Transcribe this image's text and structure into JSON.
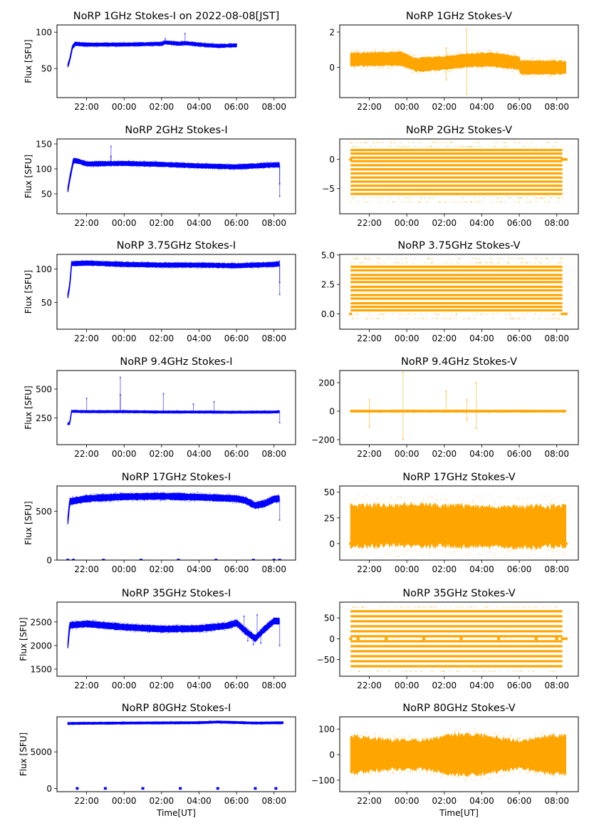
{
  "figure": {
    "date_label": "2022-08-08[JST]",
    "xlabel": "Time[UT]",
    "ylabel": "Flux [SFU]",
    "colors": {
      "stokes_i": "#0000ff",
      "stokes_v": "#ffa500"
    }
  },
  "chart_data": [
    {
      "type": "scatter",
      "panel": "1GHz-I",
      "title": "NoRP 1GHz Stokes-I on 2022-08-08[JST]",
      "ylabel": "Flux [SFU]",
      "xlabel": "",
      "x_tick_labels": [
        "22:00",
        "00:00",
        "02:00",
        "04:00",
        "06:00",
        "08:00"
      ],
      "y_ticks": [
        50,
        100
      ],
      "ylim": [
        10,
        110
      ],
      "series": {
        "name": "Stokes-I",
        "color": "#0000ff",
        "start": 21.0,
        "end": 30.0,
        "points": [
          [
            21.0,
            54
          ],
          [
            21.1,
            62
          ],
          [
            21.25,
            80
          ],
          [
            21.4,
            84
          ],
          [
            22,
            83
          ],
          [
            24,
            83
          ],
          [
            26,
            84
          ],
          [
            26.2,
            86
          ],
          [
            27,
            84
          ],
          [
            27.25,
            85
          ],
          [
            28,
            83
          ],
          [
            29,
            81
          ],
          [
            30,
            82
          ]
        ],
        "band": 2,
        "spikes": [
          [
            26.2,
            91
          ],
          [
            27.25,
            98
          ]
        ]
      }
    },
    {
      "type": "scatter",
      "panel": "1GHz-V",
      "title": "NoRP 1GHz Stokes-V",
      "x_tick_labels": [
        "22:00",
        "00:00",
        "02:00",
        "04:00",
        "06:00",
        "08:00"
      ],
      "y_ticks": [
        0,
        2
      ],
      "ylim": [
        -1.7,
        2.4
      ],
      "series": {
        "name": "Stokes-V",
        "color": "#ffa500",
        "start": 21.0,
        "end": 32.5,
        "points": [
          [
            21.0,
            0.45
          ],
          [
            23.7,
            0.5
          ],
          [
            24.5,
            0.15
          ],
          [
            26,
            0.25
          ],
          [
            27.2,
            0.4
          ],
          [
            28.5,
            0.45
          ],
          [
            30,
            0.25
          ],
          [
            30.05,
            0.0
          ],
          [
            32.5,
            0.0
          ]
        ],
        "band": 0.35,
        "spikes": [
          [
            26.1,
            -0.7
          ],
          [
            26.1,
            1.1
          ],
          [
            27.2,
            2.2
          ],
          [
            27.2,
            -1.5
          ]
        ]
      }
    },
    {
      "type": "scatter",
      "panel": "2GHz-I",
      "title": "NoRP 2GHz Stokes-I",
      "ylabel": "Flux [SFU]",
      "x_tick_labels": [
        "22:00",
        "00:00",
        "02:00",
        "04:00",
        "06:00",
        "08:00"
      ],
      "y_ticks": [
        50,
        100,
        150
      ],
      "ylim": [
        10,
        160
      ],
      "series": {
        "name": "Stokes-I",
        "color": "#0000ff",
        "start": 21.0,
        "end": 32.3,
        "points": [
          [
            21.0,
            58
          ],
          [
            21.1,
            80
          ],
          [
            21.3,
            117
          ],
          [
            21.6,
            115
          ],
          [
            22,
            110
          ],
          [
            24,
            111
          ],
          [
            26,
            109
          ],
          [
            28,
            106
          ],
          [
            30,
            104
          ],
          [
            32,
            108
          ],
          [
            32.3,
            108
          ]
        ],
        "band": 4,
        "spikes": [
          [
            23.3,
            145
          ],
          [
            23.3,
            125
          ],
          [
            32.3,
            45
          ],
          [
            32.3,
            70
          ]
        ]
      }
    },
    {
      "type": "scatter",
      "panel": "2GHz-V",
      "title": "NoRP 2GHz Stokes-V",
      "x_tick_labels": [
        "22:00",
        "00:00",
        "02:00",
        "04:00",
        "06:00",
        "08:00"
      ],
      "y_ticks": [
        -5,
        0
      ],
      "ylim": [
        -9.3,
        3.5
      ],
      "series": {
        "name": "Stokes-V",
        "color": "#ffa500",
        "start": 21.0,
        "end": 32.3,
        "levels": [
          1.6,
          1.0,
          0.3,
          -0.3,
          -1.0,
          -1.7,
          -2.4,
          -3.1,
          -3.8,
          -4.5,
          -5.2,
          -5.9
        ],
        "faint_levels": [
          2.2,
          2.9,
          -6.6,
          -7.3
        ],
        "end_value": 0
      }
    },
    {
      "type": "scatter",
      "panel": "3.75GHz-I",
      "title": "NoRP 3.75GHz Stokes-I",
      "ylabel": "Flux [SFU]",
      "x_tick_labels": [
        "22:00",
        "00:00",
        "02:00",
        "04:00",
        "06:00",
        "08:00"
      ],
      "y_ticks": [
        50,
        100
      ],
      "ylim": [
        10,
        122
      ],
      "series": {
        "name": "Stokes-I",
        "color": "#0000ff",
        "start": 21.0,
        "end": 32.3,
        "points": [
          [
            21.0,
            60
          ],
          [
            21.1,
            75
          ],
          [
            21.2,
            108
          ],
          [
            22,
            109
          ],
          [
            24,
            107
          ],
          [
            26,
            106
          ],
          [
            28,
            106
          ],
          [
            30,
            105
          ],
          [
            32,
            107
          ],
          [
            32.3,
            108
          ]
        ],
        "band": 3,
        "spikes": [
          [
            32.3,
            62
          ],
          [
            32.3,
            80
          ]
        ]
      }
    },
    {
      "type": "scatter",
      "panel": "3.75GHz-V",
      "title": "NoRP 3.75GHz Stokes-V",
      "x_tick_labels": [
        "22:00",
        "00:00",
        "02:00",
        "04:00",
        "06:00",
        "08:00"
      ],
      "y_ticks": [
        0.0,
        2.5,
        5.0
      ],
      "y_tick_labels": [
        "0.0",
        "2.5",
        "5.0"
      ],
      "ylim": [
        -1.3,
        5.05
      ],
      "series": {
        "name": "Stokes-V",
        "color": "#ffa500",
        "start": 21.0,
        "end": 32.3,
        "levels": [
          0.3,
          0.6,
          0.9,
          1.3,
          1.6,
          2.0,
          2.3,
          2.7,
          3.0,
          3.3,
          3.7,
          4.0
        ],
        "faint_levels": [
          4.35,
          4.7,
          -0.05,
          -0.4
        ],
        "end_value": 0
      }
    },
    {
      "type": "scatter",
      "panel": "9.4GHz-I",
      "title": "NoRP 9.4GHz Stokes-I",
      "ylabel": "Flux [SFU]",
      "x_tick_labels": [
        "22:00",
        "00:00",
        "02:00",
        "04:00",
        "06:00",
        "08:00"
      ],
      "y_ticks": [
        250,
        500
      ],
      "ylim": [
        20,
        660
      ],
      "series": {
        "name": "Stokes-I",
        "color": "#0000ff",
        "start": 21.0,
        "end": 32.3,
        "points": [
          [
            21.0,
            200
          ],
          [
            21.1,
            205
          ],
          [
            21.2,
            308
          ],
          [
            22,
            305
          ],
          [
            24,
            305
          ],
          [
            26,
            302
          ],
          [
            28,
            302
          ],
          [
            30,
            300
          ],
          [
            32,
            302
          ],
          [
            32.3,
            305
          ]
        ],
        "band": 8,
        "spikes": [
          [
            22.0,
            420
          ],
          [
            23.8,
            600
          ],
          [
            23.8,
            450
          ],
          [
            26.1,
            460
          ],
          [
            27.7,
            370
          ],
          [
            28.8,
            390
          ],
          [
            32.3,
            210
          ]
        ]
      }
    },
    {
      "type": "scatter",
      "panel": "9.4GHz-V",
      "title": "NoRP 9.4GHz Stokes-V",
      "x_tick_labels": [
        "22:00",
        "00:00",
        "02:00",
        "04:00",
        "06:00",
        "08:00"
      ],
      "y_ticks": [
        -200,
        0,
        200
      ],
      "ylim": [
        -235,
        285
      ],
      "series": {
        "name": "Stokes-V",
        "color": "#ffa500",
        "start": 21.0,
        "end": 32.5,
        "points": [
          [
            21.0,
            0
          ],
          [
            32.5,
            0
          ]
        ],
        "band": 6,
        "spikes": [
          [
            22.0,
            80
          ],
          [
            22.0,
            -110
          ],
          [
            23.8,
            270
          ],
          [
            23.8,
            -200
          ],
          [
            26.1,
            140
          ],
          [
            27.2,
            80
          ],
          [
            27.2,
            -60
          ],
          [
            27.7,
            200
          ],
          [
            27.7,
            -120
          ]
        ]
      }
    },
    {
      "type": "scatter",
      "panel": "17GHz-I",
      "title": "NoRP 17GHz Stokes-I",
      "ylabel": "Flux [SFU]",
      "x_tick_labels": [
        "22:00",
        "00:00",
        "02:00",
        "04:00",
        "06:00",
        "08:00"
      ],
      "y_ticks": [
        0,
        500
      ],
      "ylim": [
        0,
        760
      ],
      "series": {
        "name": "Stokes-I",
        "color": "#0000ff",
        "start": 21.0,
        "end": 32.3,
        "points": [
          [
            21.0,
            400
          ],
          [
            21.1,
            600
          ],
          [
            22,
            630
          ],
          [
            24,
            650
          ],
          [
            26,
            655
          ],
          [
            28,
            645
          ],
          [
            30,
            630
          ],
          [
            30.5,
            610
          ],
          [
            31,
            560
          ],
          [
            31.5,
            580
          ],
          [
            32,
            625
          ],
          [
            32.3,
            630
          ]
        ],
        "band": 30,
        "spikes": [
          [
            32.3,
            410
          ]
        ],
        "zero_marks": [
          21.0,
          21.3,
          22.9,
          24.9,
          26.9,
          28.9,
          30.9,
          32.0,
          32.3
        ]
      }
    },
    {
      "type": "scatter",
      "panel": "17GHz-V",
      "title": "NoRP 17GHz Stokes-V",
      "x_tick_labels": [
        "22:00",
        "00:00",
        "02:00",
        "04:00",
        "06:00",
        "08:00"
      ],
      "y_ticks": [
        0,
        25,
        50
      ],
      "ylim": [
        -16,
        56
      ],
      "series": {
        "name": "Stokes-V",
        "color": "#ffa500",
        "start": 21.0,
        "end": 32.5,
        "points": [
          [
            21.0,
            17
          ],
          [
            24,
            18
          ],
          [
            27,
            17
          ],
          [
            30,
            16
          ],
          [
            32.3,
            17
          ]
        ],
        "band": 19,
        "end_value": 0
      }
    },
    {
      "type": "scatter",
      "panel": "35GHz-I",
      "title": "NoRP 35GHz Stokes-I",
      "ylabel": "Flux [SFU]",
      "x_tick_labels": [
        "22:00",
        "00:00",
        "02:00",
        "04:00",
        "06:00",
        "08:00"
      ],
      "y_ticks": [
        1500,
        2000,
        2500
      ],
      "ylim": [
        1350,
        2920
      ],
      "series": {
        "name": "Stokes-I",
        "color": "#0000ff",
        "start": 21.0,
        "end": 32.3,
        "points": [
          [
            21.0,
            2000
          ],
          [
            21.1,
            2430
          ],
          [
            22,
            2460
          ],
          [
            24,
            2390
          ],
          [
            26,
            2350
          ],
          [
            28,
            2360
          ],
          [
            29.5,
            2420
          ],
          [
            30,
            2480
          ],
          [
            30.5,
            2300
          ],
          [
            31,
            2150
          ],
          [
            31.5,
            2350
          ],
          [
            32,
            2520
          ],
          [
            32.3,
            2520
          ]
        ],
        "band": 60,
        "spikes": [
          [
            30.4,
            2620
          ],
          [
            30.6,
            2100
          ],
          [
            30.9,
            2020
          ],
          [
            31.1,
            2650
          ],
          [
            31.3,
            2050
          ],
          [
            32.3,
            2000
          ]
        ]
      }
    },
    {
      "type": "scatter",
      "panel": "35GHz-V",
      "title": "NoRP 35GHz Stokes-V",
      "x_tick_labels": [
        "22:00",
        "00:00",
        "02:00",
        "04:00",
        "06:00",
        "08:00"
      ],
      "y_ticks": [
        -50,
        0,
        50
      ],
      "ylim": [
        -90,
        88
      ],
      "series": {
        "name": "Stokes-V",
        "color": "#ffa500",
        "start": 21.0,
        "end": 32.3,
        "levels": [
          54,
          42,
          30,
          18,
          6,
          -6,
          -18,
          -30,
          -42,
          -54,
          -66,
          66
        ],
        "faint_levels": [
          76,
          -78
        ],
        "end_value": 0,
        "zero_marks": [
          21.4,
          22.9,
          24.9,
          26.9,
          28.9,
          30.9,
          32.0
        ]
      }
    },
    {
      "type": "scatter",
      "panel": "80GHz-I",
      "title": "NoRP 80GHz Stokes-I",
      "ylabel": "Flux [SFU]",
      "xlabel": "Time[UT]",
      "x_tick_labels": [
        "22:00",
        "00:00",
        "02:00",
        "04:00",
        "06:00",
        "08:00"
      ],
      "y_ticks": [
        0,
        5000
      ],
      "ylim": [
        -450,
        9800
      ],
      "series": {
        "name": "Stokes-I",
        "color": "#0000ff",
        "start": 21.0,
        "end": 32.5,
        "points": [
          [
            21.0,
            8900
          ],
          [
            24,
            8950
          ],
          [
            28,
            9000
          ],
          [
            29,
            9100
          ],
          [
            31,
            8950
          ],
          [
            32.5,
            9000
          ]
        ],
        "band": 120,
        "zero_marks": [
          21.5,
          23.0,
          25.0,
          27.0,
          29.0,
          31.0,
          32.1
        ]
      }
    },
    {
      "type": "scatter",
      "panel": "80GHz-V",
      "title": "NoRP 80GHz Stokes-V",
      "xlabel": "Time[UT]",
      "x_tick_labels": [
        "22:00",
        "00:00",
        "02:00",
        "04:00",
        "06:00",
        "08:00"
      ],
      "y_ticks": [
        -100,
        0,
        100
      ],
      "ylim": [
        -145,
        148
      ],
      "series": {
        "name": "Stokes-V",
        "color": "#ffa500",
        "start": 21.0,
        "end": 32.5,
        "points": [
          [
            21.0,
            0
          ],
          [
            24,
            0
          ],
          [
            27,
            0
          ],
          [
            30,
            0
          ],
          [
            32.5,
            0
          ]
        ],
        "band_profile": [
          [
            21.0,
            70
          ],
          [
            23,
            55
          ],
          [
            25,
            55
          ],
          [
            27,
            80
          ],
          [
            28.5,
            70
          ],
          [
            30,
            50
          ],
          [
            31.5,
            70
          ],
          [
            32.5,
            70
          ]
        ]
      }
    }
  ]
}
